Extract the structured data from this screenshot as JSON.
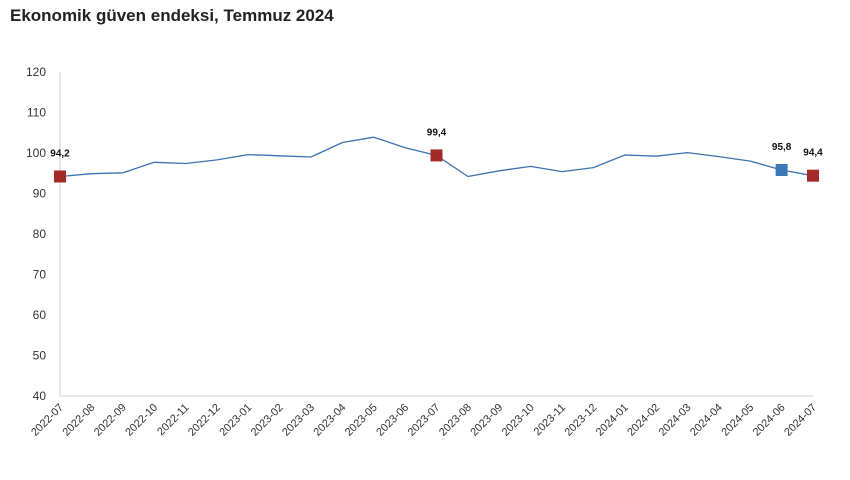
{
  "title": "Ekonomik güven endeksi, Temmuz 2024",
  "chart_data": {
    "type": "line",
    "title": "Ekonomik güven endeksi, Temmuz 2024",
    "xlabel": "",
    "ylabel": "",
    "ylim": [
      40,
      120
    ],
    "yticks": [
      40,
      50,
      60,
      70,
      80,
      90,
      100,
      110,
      120
    ],
    "grid": false,
    "legend": "none",
    "categories": [
      "2022-07",
      "2022-08",
      "2022-09",
      "2022-10",
      "2022-11",
      "2022-12",
      "2023-01",
      "2023-02",
      "2023-03",
      "2023-04",
      "2023-05",
      "2023-06",
      "2023-07",
      "2023-08",
      "2023-09",
      "2023-10",
      "2023-11",
      "2023-12",
      "2024-01",
      "2024-02",
      "2024-03",
      "2024-04",
      "2024-05",
      "2024-06",
      "2024-07"
    ],
    "series": [
      {
        "values": [
          94.2,
          94.9,
          95.1,
          97.7,
          97.4,
          98.3,
          99.6,
          99.3,
          99.0,
          102.6,
          103.9,
          101.3,
          99.4,
          94.2,
          95.6,
          96.7,
          95.4,
          96.4,
          99.5,
          99.2,
          100.1,
          99.1,
          98.0,
          95.8,
          94.4
        ],
        "color": "#3a72b0"
      }
    ],
    "highlights": [
      {
        "index": 0,
        "label": "94,2",
        "color": "#a42a27"
      },
      {
        "index": 12,
        "label": "99,4",
        "color": "#a42a27"
      },
      {
        "index": 23,
        "label": "95,8",
        "color": "#3c78b7"
      },
      {
        "index": 24,
        "label": "94,4",
        "color": "#a42a27"
      }
    ]
  }
}
